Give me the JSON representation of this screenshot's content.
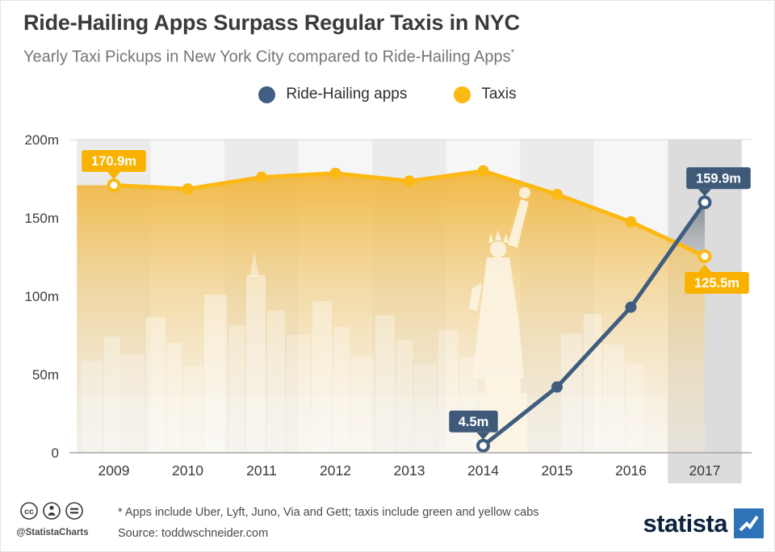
{
  "header": {
    "title": "Ride-Hailing Apps Surpass Regular Taxis in NYC",
    "subtitle": "Yearly Taxi Pickups in New York City compared to Ride-Hailing Apps",
    "subtitle_marker": "*"
  },
  "legend": {
    "items": [
      {
        "label": "Ride-Hailing apps",
        "color": "#3f5e82"
      },
      {
        "label": "Taxis",
        "color": "#fcb813"
      }
    ]
  },
  "chart_data": {
    "type": "line",
    "categories": [
      "2009",
      "2010",
      "2011",
      "2012",
      "2013",
      "2014",
      "2015",
      "2016",
      "2017"
    ],
    "series": [
      {
        "name": "Taxis",
        "color": "#fcb813",
        "values": [
          170.9,
          168.5,
          176,
          178.5,
          173.5,
          180,
          165,
          147.5,
          125.5
        ]
      },
      {
        "name": "Ride-Hailing apps",
        "color": "#3f5d7e",
        "values": [
          null,
          null,
          null,
          null,
          null,
          4.5,
          42,
          93,
          159.9
        ]
      }
    ],
    "ylim": [
      0,
      200
    ],
    "yticks": [
      {
        "value": 200,
        "label": "200m"
      },
      {
        "value": 150,
        "label": "150m"
      },
      {
        "value": 100,
        "label": "100m"
      },
      {
        "value": 50,
        "label": "50m"
      },
      {
        "value": 0,
        "label": "0"
      }
    ],
    "grid": "top-rule-and-baseline",
    "legend_position": "top",
    "annotations": [
      {
        "text": "170.9m",
        "series": "Taxis",
        "category": "2009",
        "position": "above",
        "color": "#f9b200"
      },
      {
        "text": "4.5m",
        "series": "Ride-Hailing apps",
        "category": "2014",
        "position": "above",
        "color": "#3e5a78"
      },
      {
        "text": "159.9m",
        "series": "Ride-Hailing apps",
        "category": "2017",
        "position": "above",
        "color": "#3e5a78"
      },
      {
        "text": "125.5m",
        "series": "Taxis",
        "category": "2017",
        "position": "below",
        "color": "#f9b200"
      }
    ]
  },
  "footer": {
    "note": "* Apps include Uber, Lyft, Juno, Via and Gett; taxis include green and yellow cabs",
    "source": "Source: toddwschneider.com",
    "credit": "@StatistaCharts",
    "brand": "statista"
  }
}
